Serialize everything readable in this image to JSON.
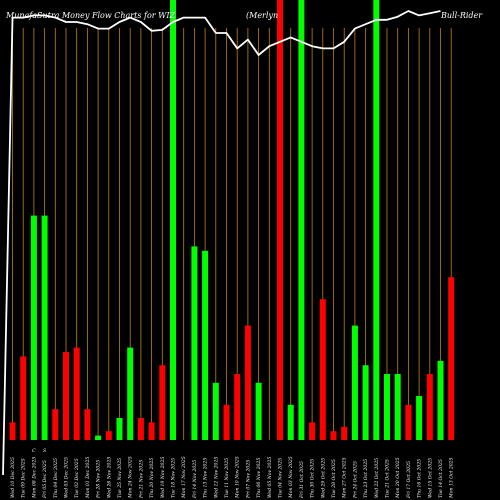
{
  "chart_data": {
    "type": "bar",
    "title_left": "MunafaSutra  Money Flow  Charts for WIZ",
    "title_mid": "(Merlyn",
    "title_right": "Bull-Rider",
    "colors": {
      "up": "#00ff00",
      "down": "#ff0000",
      "grid": "#b8860b",
      "line": "#ffffff",
      "background": "#000000"
    },
    "markers": [
      "C",
      "S"
    ],
    "bars": [
      {
        "label": "Wed 10 Dec 2025",
        "value": 4,
        "dir": "down"
      },
      {
        "label": "Tue 09 Dec 2025",
        "value": 19,
        "dir": "down"
      },
      {
        "label": "Mon 08 Dec 2025",
        "value": 51,
        "dir": "up"
      },
      {
        "label": "Fri 05 Dec 2025",
        "value": 51,
        "dir": "up"
      },
      {
        "label": "Thu 04 Dec 2025",
        "value": 7,
        "dir": "down"
      },
      {
        "label": "Wed 03 Dec 2025",
        "value": 20,
        "dir": "down"
      },
      {
        "label": "Tue 02 Dec 2025",
        "value": 21,
        "dir": "down"
      },
      {
        "label": "Mon 01 Dec 2025",
        "value": 7,
        "dir": "down"
      },
      {
        "label": "Fri 28 Nov 2025",
        "value": 1,
        "dir": "up"
      },
      {
        "label": "Wed 26 Nov 2025",
        "value": 2,
        "dir": "down"
      },
      {
        "label": "Tue 25 Nov 2025",
        "value": 5,
        "dir": "up"
      },
      {
        "label": "Mon 24 Nov 2025",
        "value": 21,
        "dir": "up"
      },
      {
        "label": "Fri 21 Nov 2025",
        "value": 5,
        "dir": "down"
      },
      {
        "label": "Thu 20 Nov 2025",
        "value": 4,
        "dir": "down"
      },
      {
        "label": "Wed 19 Nov 2025",
        "value": 17,
        "dir": "down"
      },
      {
        "label": "Tue 18 Nov 2025",
        "value": 100,
        "dir": "up"
      },
      {
        "label": "Mon 17 Nov 2025",
        "value": 0,
        "dir": "down"
      },
      {
        "label": "Fri 14 Nov 2025",
        "value": 44,
        "dir": "up"
      },
      {
        "label": "Thu 13 Nov 2025",
        "value": 43,
        "dir": "up"
      },
      {
        "label": "Wed 12 Nov 2025",
        "value": 13,
        "dir": "up"
      },
      {
        "label": "Tue 11 Nov 2025",
        "value": 8,
        "dir": "down"
      },
      {
        "label": "Mon 10 Nov 2025",
        "value": 15,
        "dir": "down"
      },
      {
        "label": "Fri 07 Nov 2025",
        "value": 26,
        "dir": "down"
      },
      {
        "label": "Thu 06 Nov 2025",
        "value": 13,
        "dir": "up"
      },
      {
        "label": "Wed 05 Nov 2025",
        "value": 0,
        "dir": "up"
      },
      {
        "label": "Tue 04 Nov 2025",
        "value": 100,
        "dir": "down"
      },
      {
        "label": "Mon 03 Nov 2025",
        "value": 8,
        "dir": "up"
      },
      {
        "label": "Fri 31 Oct 2025",
        "value": 100,
        "dir": "up"
      },
      {
        "label": "Thu 30 Oct 2025",
        "value": 4,
        "dir": "down"
      },
      {
        "label": "Wed 29 Oct 2025",
        "value": 32,
        "dir": "down"
      },
      {
        "label": "Tue 28 Oct 2025",
        "value": 2,
        "dir": "down"
      },
      {
        "label": "Mon 27 Oct 2025",
        "value": 3,
        "dir": "down"
      },
      {
        "label": "Fri 24 Oct 2025",
        "value": 26,
        "dir": "up"
      },
      {
        "label": "Thu 23 Oct 2025",
        "value": 17,
        "dir": "up"
      },
      {
        "label": "Wed 22 Oct 2025",
        "value": 100,
        "dir": "up"
      },
      {
        "label": "Tue 21 Oct 2025",
        "value": 15,
        "dir": "up"
      },
      {
        "label": "Mon 20 Oct 2025",
        "value": 15,
        "dir": "up"
      },
      {
        "label": "Fri 17 Oct 2025",
        "value": 8,
        "dir": "down"
      },
      {
        "label": "Thu 16 Oct 2025",
        "value": 10,
        "dir": "up"
      },
      {
        "label": "Wed 15 Oct 2025",
        "value": 15,
        "dir": "down"
      },
      {
        "label": "Tue 14 Oct 2025",
        "value": 18,
        "dir": "up"
      },
      {
        "label": "Mon 13 Oct 2025",
        "value": 37,
        "dir": "down"
      }
    ],
    "line_values": [
      0,
      96,
      96,
      96.5,
      96.5,
      96,
      95,
      95,
      94.5,
      93.5,
      93.5,
      95,
      96,
      95,
      93,
      93.2,
      95,
      96,
      96,
      96,
      92.5,
      92.5,
      89,
      91,
      87.5,
      89.5,
      90.5,
      91.5,
      90.5,
      89.5,
      89,
      89,
      90.5,
      93.5,
      94.5,
      95.5,
      95.5,
      96.2,
      97.5,
      96.5,
      97,
      97.5
    ],
    "ylim": [
      0,
      100
    ]
  }
}
